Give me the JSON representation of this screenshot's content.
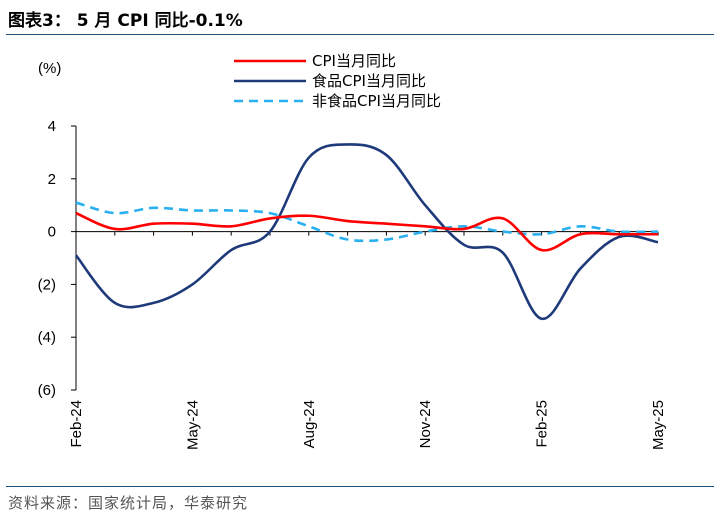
{
  "header": {
    "title": "图表3：  5 月 CPI 同比-0.1%"
  },
  "footer": {
    "source": "资料来源：国家统计局，华泰研究"
  },
  "chart_data": {
    "type": "line",
    "unit_label": "(%)",
    "ylim": [
      -6,
      4
    ],
    "y_ticks": [
      4,
      2,
      0,
      -2,
      -4,
      -6
    ],
    "y_tick_labels": [
      "4",
      "2",
      "0",
      "(2)",
      "(4)",
      "(6)"
    ],
    "x_tick_labels": [
      "Feb-24",
      "May-24",
      "Aug-24",
      "Nov-24",
      "Feb-25",
      "May-25"
    ],
    "x_tick_index": [
      0,
      3,
      6,
      9,
      12,
      15
    ],
    "x": [
      "2024-02",
      "2024-03",
      "2024-04",
      "2024-05",
      "2024-06",
      "2024-07",
      "2024-08",
      "2024-09",
      "2024-10",
      "2024-11",
      "2024-12",
      "2025-01",
      "2025-02",
      "2025-03",
      "2025-04",
      "2025-05"
    ],
    "grid": false,
    "legend_position": "top",
    "series": [
      {
        "name": "CPI当月同比",
        "color": "#ff0000",
        "dash": "solid",
        "values": [
          0.7,
          0.1,
          0.3,
          0.3,
          0.2,
          0.5,
          0.6,
          0.4,
          0.3,
          0.2,
          0.1,
          0.5,
          -0.7,
          -0.1,
          -0.1,
          -0.1
        ]
      },
      {
        "name": "食品CPI当月同比",
        "color": "#1f3a7a",
        "dash": "solid",
        "values": [
          -0.9,
          -2.7,
          -2.7,
          -2.0,
          -0.7,
          0.0,
          2.8,
          3.3,
          2.9,
          1.0,
          -0.5,
          -0.8,
          -3.3,
          -1.4,
          -0.2,
          -0.4
        ]
      },
      {
        "name": "非食品CPI当月同比",
        "color": "#2ab0f0",
        "dash": "dashed",
        "values": [
          1.1,
          0.7,
          0.9,
          0.8,
          0.8,
          0.7,
          0.2,
          -0.3,
          -0.3,
          0.0,
          0.2,
          0.0,
          -0.1,
          0.2,
          0.0,
          0.0
        ]
      }
    ]
  }
}
